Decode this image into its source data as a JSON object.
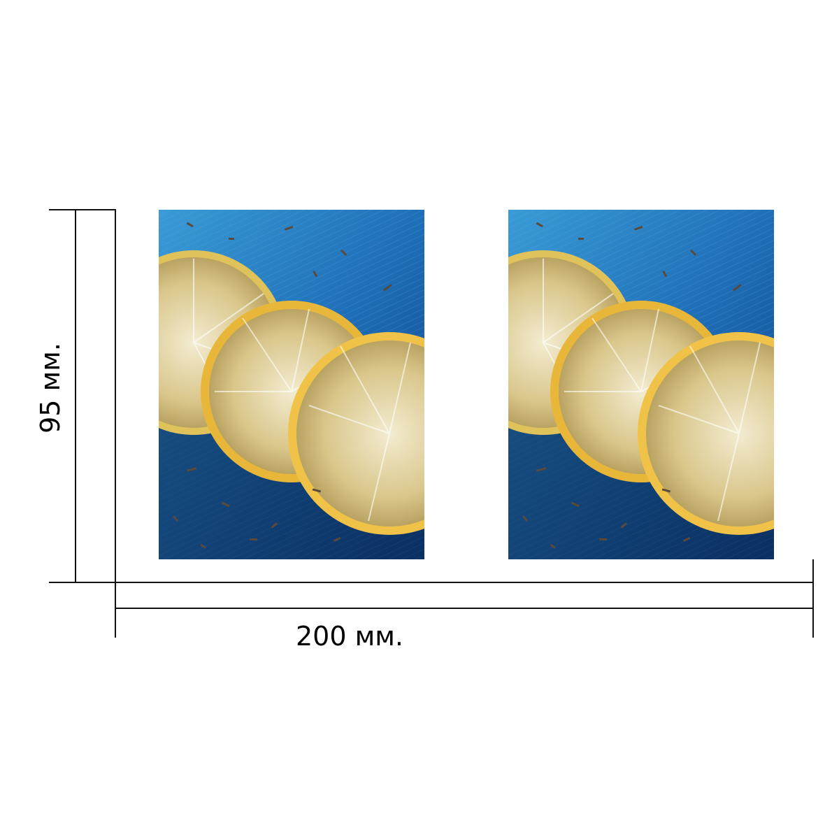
{
  "dimensions": {
    "width_label": "200 мм.",
    "height_label": "95 мм."
  },
  "photos": [
    {
      "subject": "lemon-slices-on-blue-wood"
    },
    {
      "subject": "lemon-slices-on-blue-wood"
    }
  ],
  "colors": {
    "wood_blue": "#1f6fb8",
    "lemon_yellow": "#e8b73a",
    "line": "#111111"
  }
}
